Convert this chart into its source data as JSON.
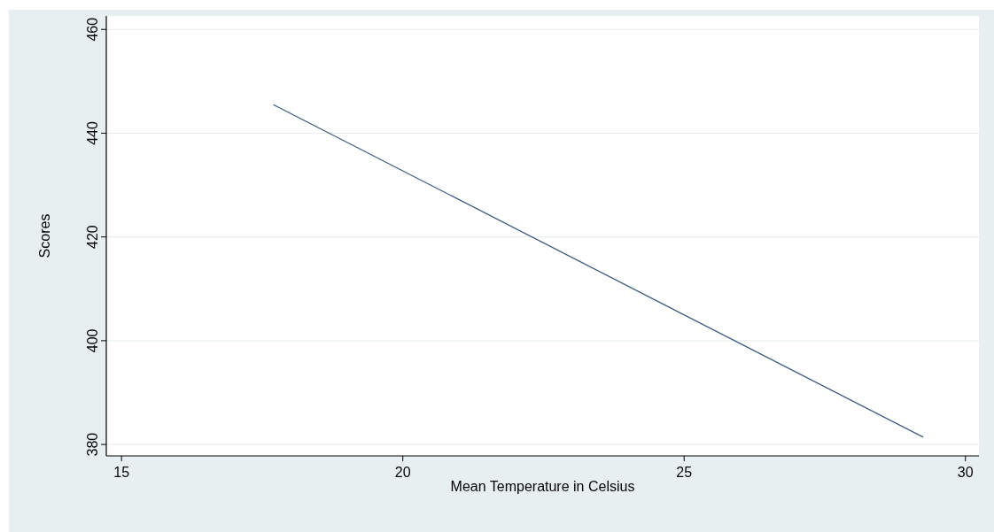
{
  "chart_data": {
    "type": "line",
    "xlabel": "Mean Temperature in Celsius",
    "ylabel": "Scores",
    "x": [
      17.7,
      29.25
    ],
    "series": [
      {
        "color": "#3d5a80",
        "values": [
          445.5,
          381.4
        ]
      }
    ],
    "xlim": [
      14.73,
      30.24
    ],
    "ylim": [
      377.8,
      462.6
    ],
    "xticks": [
      15,
      20,
      25,
      30
    ],
    "yticks": [
      380,
      400,
      420,
      440,
      460
    ],
    "grid": "y",
    "marker": "none",
    "line_style": "solid"
  }
}
